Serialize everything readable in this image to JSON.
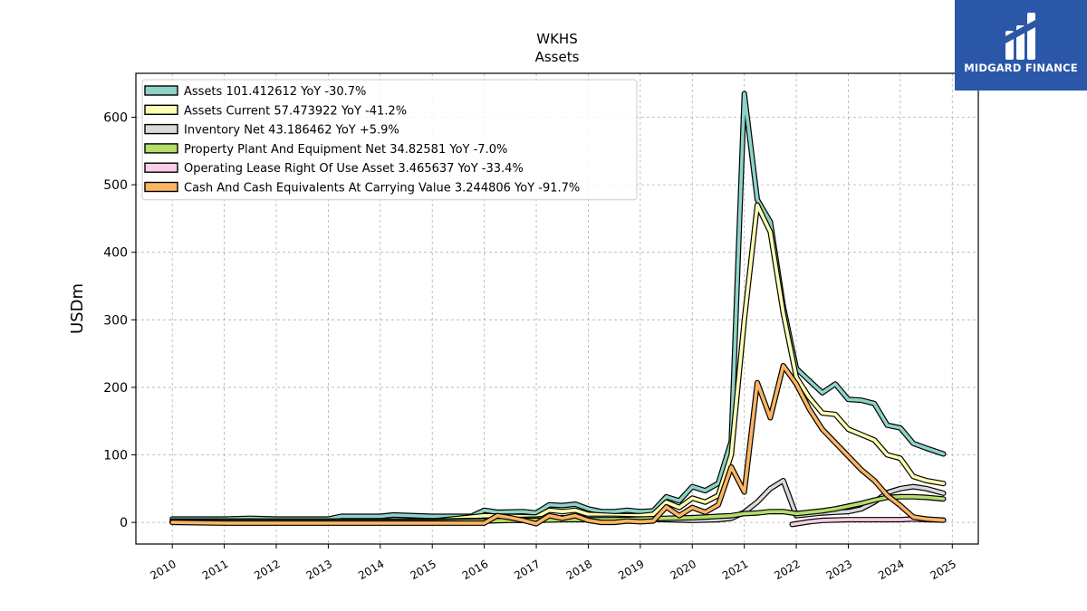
{
  "brand": {
    "name": "MIDGARD FINANCE",
    "logo_icon": "midgard-logo-icon",
    "bg_color": "#2b57a8"
  },
  "chart_data": {
    "type": "line",
    "title": "WKHS",
    "subtitle": "Assets",
    "ylabel": "USDm",
    "xlabel": "",
    "xlim": [
      2009.3,
      2025.5
    ],
    "ylim": [
      -32,
      665
    ],
    "x_ticks": [
      2010,
      2011,
      2012,
      2013,
      2014,
      2015,
      2016,
      2017,
      2018,
      2019,
      2020,
      2021,
      2022,
      2023,
      2024,
      2025
    ],
    "x_tick_labels": [
      "2010",
      "2011",
      "2012",
      "2013",
      "2014",
      "2015",
      "2016",
      "2017",
      "2018",
      "2019",
      "2020",
      "2021",
      "2022",
      "2023",
      "2024",
      "2025"
    ],
    "y_ticks": [
      0,
      100,
      200,
      300,
      400,
      500,
      600
    ],
    "y_tick_labels": [
      "0",
      "100",
      "200",
      "300",
      "400",
      "500",
      "600"
    ],
    "grid": true,
    "legend_position": "top-left",
    "series": [
      {
        "name": "Assets",
        "legend_label": "Assets  101.412612 YoY -30.7%",
        "color": "#8dd3c7",
        "points": [
          [
            2010,
            5
          ],
          [
            2011,
            5
          ],
          [
            2011.5,
            6
          ],
          [
            2012,
            5
          ],
          [
            2013,
            5
          ],
          [
            2013.25,
            9
          ],
          [
            2014,
            9
          ],
          [
            2014.25,
            11
          ],
          [
            2015,
            9
          ],
          [
            2015.75,
            9
          ],
          [
            2016,
            18
          ],
          [
            2016.25,
            15
          ],
          [
            2016.75,
            16
          ],
          [
            2017,
            14
          ],
          [
            2017.25,
            26
          ],
          [
            2017.5,
            25
          ],
          [
            2017.75,
            27
          ],
          [
            2018,
            20
          ],
          [
            2018.25,
            16
          ],
          [
            2018.5,
            16
          ],
          [
            2018.75,
            18
          ],
          [
            2019,
            16
          ],
          [
            2019.25,
            17
          ],
          [
            2019.5,
            38
          ],
          [
            2019.75,
            32
          ],
          [
            2020,
            53
          ],
          [
            2020.25,
            47
          ],
          [
            2020.5,
            58
          ],
          [
            2020.75,
            120
          ],
          [
            2021,
            635
          ],
          [
            2021.25,
            478
          ],
          [
            2021.5,
            445
          ],
          [
            2021.75,
            320
          ],
          [
            2022,
            228
          ],
          [
            2022.25,
            210
          ],
          [
            2022.5,
            192
          ],
          [
            2022.75,
            205
          ],
          [
            2023,
            182
          ],
          [
            2023.25,
            181
          ],
          [
            2023.5,
            176
          ],
          [
            2023.75,
            144
          ],
          [
            2024,
            140
          ],
          [
            2024.25,
            117
          ],
          [
            2024.5,
            110
          ],
          [
            2024.83,
            101.4
          ]
        ]
      },
      {
        "name": "Assets Current",
        "legend_label": "Assets Current  57.473922 YoY -41.2%",
        "color": "#ffffb3",
        "points": [
          [
            2010,
            2
          ],
          [
            2011,
            2
          ],
          [
            2012,
            2
          ],
          [
            2013,
            2
          ],
          [
            2014,
            2
          ],
          [
            2015,
            2
          ],
          [
            2016,
            10
          ],
          [
            2016.5,
            9
          ],
          [
            2017,
            8
          ],
          [
            2017.25,
            18
          ],
          [
            2017.5,
            16
          ],
          [
            2017.75,
            18
          ],
          [
            2018,
            12
          ],
          [
            2018.5,
            10
          ],
          [
            2019,
            10
          ],
          [
            2019.25,
            12
          ],
          [
            2019.5,
            30
          ],
          [
            2019.75,
            22
          ],
          [
            2020,
            36
          ],
          [
            2020.25,
            30
          ],
          [
            2020.5,
            40
          ],
          [
            2020.75,
            100
          ],
          [
            2021,
            300
          ],
          [
            2021.25,
            470
          ],
          [
            2021.5,
            430
          ],
          [
            2021.75,
            310
          ],
          [
            2022,
            215
          ],
          [
            2022.25,
            185
          ],
          [
            2022.5,
            162
          ],
          [
            2022.75,
            160
          ],
          [
            2023,
            138
          ],
          [
            2023.25,
            130
          ],
          [
            2023.5,
            122
          ],
          [
            2023.75,
            100
          ],
          [
            2024,
            95
          ],
          [
            2024.25,
            68
          ],
          [
            2024.5,
            62
          ],
          [
            2024.83,
            57.5
          ]
        ]
      },
      {
        "name": "Inventory Net",
        "legend_label": "Inventory Net  43.186462 YoY +5.9%",
        "color": "#d9d9d9",
        "points": [
          [
            2010,
            1
          ],
          [
            2011,
            1
          ],
          [
            2012,
            1
          ],
          [
            2013,
            1
          ],
          [
            2014,
            2
          ],
          [
            2015,
            2
          ],
          [
            2016,
            3
          ],
          [
            2016.5,
            4
          ],
          [
            2017,
            5
          ],
          [
            2017.5,
            7
          ],
          [
            2018,
            6
          ],
          [
            2018.5,
            6
          ],
          [
            2019,
            5
          ],
          [
            2019.5,
            4
          ],
          [
            2020,
            3
          ],
          [
            2020.5,
            4
          ],
          [
            2020.75,
            6
          ],
          [
            2021,
            15
          ],
          [
            2021.25,
            30
          ],
          [
            2021.5,
            50
          ],
          [
            2021.75,
            62
          ],
          [
            2022,
            10
          ],
          [
            2022.25,
            12
          ],
          [
            2022.5,
            14
          ],
          [
            2022.75,
            15
          ],
          [
            2023,
            16
          ],
          [
            2023.25,
            20
          ],
          [
            2023.5,
            30
          ],
          [
            2023.75,
            44
          ],
          [
            2024,
            50
          ],
          [
            2024.25,
            53
          ],
          [
            2024.5,
            50
          ],
          [
            2024.83,
            43.2
          ]
        ]
      },
      {
        "name": "Property Plant And Equipment Net",
        "legend_label": "Property Plant And Equipment Net  34.82581 YoY -7.0%",
        "color": "#b3de69",
        "points": [
          [
            2010,
            1
          ],
          [
            2011,
            1
          ],
          [
            2012,
            1
          ],
          [
            2013,
            1
          ],
          [
            2014,
            1
          ],
          [
            2015,
            1
          ],
          [
            2016,
            2
          ],
          [
            2016.5,
            3
          ],
          [
            2017,
            3
          ],
          [
            2017.5,
            4
          ],
          [
            2018,
            4
          ],
          [
            2018.5,
            4
          ],
          [
            2019,
            5
          ],
          [
            2019.5,
            6
          ],
          [
            2020,
            7
          ],
          [
            2020.25,
            8
          ],
          [
            2020.5,
            9
          ],
          [
            2020.75,
            10
          ],
          [
            2021,
            13
          ],
          [
            2021.25,
            14
          ],
          [
            2021.5,
            16
          ],
          [
            2021.75,
            16
          ],
          [
            2022,
            13
          ],
          [
            2022.25,
            15
          ],
          [
            2022.5,
            17
          ],
          [
            2022.75,
            20
          ],
          [
            2023,
            24
          ],
          [
            2023.25,
            28
          ],
          [
            2023.5,
            33
          ],
          [
            2023.75,
            37
          ],
          [
            2024,
            38
          ],
          [
            2024.25,
            38
          ],
          [
            2024.5,
            37
          ],
          [
            2024.83,
            34.8
          ]
        ]
      },
      {
        "name": "Operating Lease Right Of Use Asset",
        "legend_label": "Operating Lease Right Of Use Asset  3.465637 YoY -33.4%",
        "color": "#fccde5",
        "points": [
          [
            2021.92,
            -3
          ],
          [
            2022.25,
            1
          ],
          [
            2022.5,
            3
          ],
          [
            2023,
            4
          ],
          [
            2023.5,
            4
          ],
          [
            2023.75,
            4
          ],
          [
            2024,
            4
          ],
          [
            2024.25,
            5
          ],
          [
            2024.5,
            4
          ],
          [
            2024.83,
            3.5
          ]
        ]
      },
      {
        "name": "Cash And Cash Equivalents At Carrying Value",
        "legend_label": "Cash And Cash Equivalents At Carrying Value  3.244806 YoY -91.7%",
        "color": "#fdb462",
        "points": [
          [
            2010,
            0
          ],
          [
            2011,
            -1
          ],
          [
            2012,
            -1
          ],
          [
            2013,
            -1
          ],
          [
            2014,
            -1
          ],
          [
            2015,
            -1
          ],
          [
            2016,
            -1
          ],
          [
            2016.25,
            10
          ],
          [
            2016.5,
            7
          ],
          [
            2016.75,
            3
          ],
          [
            2017,
            -2
          ],
          [
            2017.25,
            10
          ],
          [
            2017.5,
            6
          ],
          [
            2017.75,
            10
          ],
          [
            2018,
            3
          ],
          [
            2018.25,
            0
          ],
          [
            2018.5,
            0
          ],
          [
            2018.75,
            2
          ],
          [
            2019,
            1
          ],
          [
            2019.25,
            2
          ],
          [
            2019.5,
            23
          ],
          [
            2019.75,
            10
          ],
          [
            2020,
            22
          ],
          [
            2020.25,
            15
          ],
          [
            2020.5,
            26
          ],
          [
            2020.75,
            82
          ],
          [
            2021,
            45
          ],
          [
            2021.25,
            207
          ],
          [
            2021.5,
            155
          ],
          [
            2021.75,
            232
          ],
          [
            2022,
            205
          ],
          [
            2022.25,
            168
          ],
          [
            2022.5,
            138
          ],
          [
            2022.75,
            118
          ],
          [
            2023,
            98
          ],
          [
            2023.25,
            78
          ],
          [
            2023.5,
            62
          ],
          [
            2023.75,
            40
          ],
          [
            2024,
            25
          ],
          [
            2024.25,
            8
          ],
          [
            2024.5,
            5
          ],
          [
            2024.83,
            3.2
          ]
        ]
      }
    ]
  }
}
